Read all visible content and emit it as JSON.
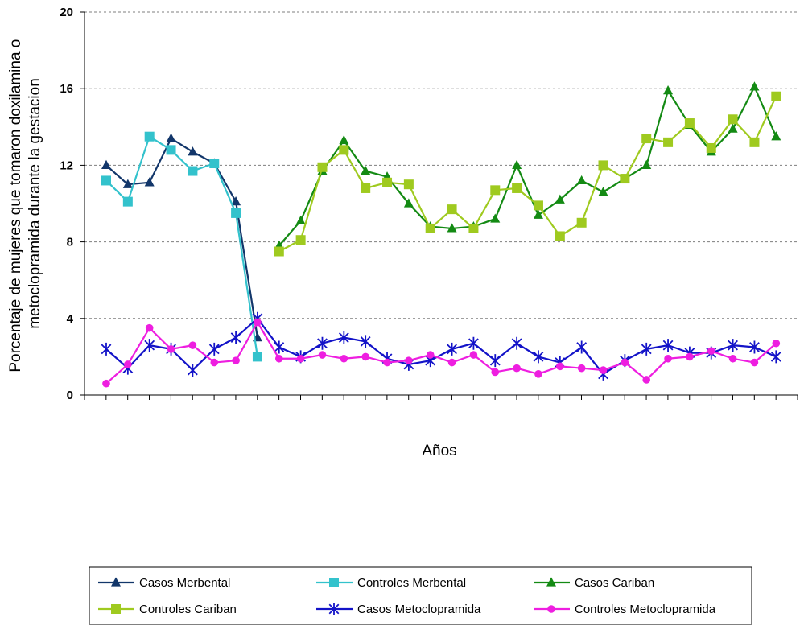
{
  "chart_data": {
    "type": "line",
    "title": "",
    "xlabel": "Años",
    "ylabel": [
      "Porcentaje de mujeres que tomaron doxilamina o",
      "metoclopramida durante la gestacion"
    ],
    "ylim": [
      0,
      20
    ],
    "yticks": [
      "0",
      "4",
      "8",
      "12",
      "16",
      "20"
    ],
    "grid": "horizontal dashed",
    "legend_position": "bottom",
    "x": [
      1,
      2,
      3,
      4,
      5,
      6,
      7,
      8,
      9,
      10,
      11,
      12,
      13,
      14,
      15,
      16,
      17,
      18,
      19,
      20,
      21,
      22,
      23,
      24,
      25,
      26,
      27,
      28,
      29,
      30,
      31,
      32,
      33
    ],
    "series": [
      {
        "name": "Casos Merbental",
        "color": "#12366a",
        "marker": "triangle",
        "values": [
          12.0,
          11.0,
          11.1,
          13.4,
          12.7,
          12.1,
          10.1,
          3.0,
          null,
          null,
          null,
          null,
          null,
          null,
          null,
          null,
          null,
          null,
          null,
          null,
          null,
          null,
          null,
          null,
          null,
          null,
          null,
          null,
          null,
          null,
          null,
          null,
          null
        ]
      },
      {
        "name": "Controles Merbental",
        "color": "#33c2cc",
        "marker": "square",
        "values": [
          11.2,
          10.1,
          13.5,
          12.8,
          11.7,
          12.1,
          9.5,
          2.0,
          null,
          null,
          null,
          null,
          null,
          null,
          null,
          null,
          null,
          null,
          null,
          null,
          null,
          null,
          null,
          null,
          null,
          null,
          null,
          null,
          null,
          null,
          null,
          null,
          null
        ]
      },
      {
        "name": "Casos Cariban",
        "color": "#138a13",
        "marker": "triangle",
        "values": [
          null,
          null,
          null,
          null,
          null,
          null,
          null,
          null,
          7.8,
          9.1,
          11.7,
          13.3,
          11.7,
          11.4,
          10.0,
          8.8,
          8.7,
          8.8,
          9.2,
          12.0,
          9.4,
          10.2,
          11.2,
          10.6,
          11.3,
          12.0,
          15.9,
          14.1,
          12.7,
          13.9,
          16.1,
          13.5,
          null
        ]
      },
      {
        "name": "Controles Cariban",
        "color": "#9fca1f",
        "marker": "square",
        "values": [
          null,
          null,
          null,
          null,
          null,
          null,
          null,
          null,
          7.5,
          8.1,
          11.9,
          12.8,
          10.8,
          11.1,
          11.0,
          8.7,
          9.7,
          8.7,
          10.7,
          10.8,
          9.9,
          8.3,
          9.0,
          12.0,
          11.3,
          13.4,
          13.2,
          14.2,
          12.9,
          14.4,
          13.2,
          15.6,
          null
        ]
      },
      {
        "name": "Casos Metoclopramida",
        "color": "#1313c8",
        "marker": "star",
        "values": [
          2.4,
          1.4,
          2.6,
          2.4,
          1.3,
          2.4,
          3.0,
          4.0,
          2.5,
          2.0,
          2.7,
          3.0,
          2.8,
          1.9,
          1.6,
          1.8,
          2.4,
          2.7,
          1.8,
          2.7,
          2.0,
          1.7,
          2.5,
          1.1,
          1.8,
          2.4,
          2.6,
          2.2,
          2.2,
          2.6,
          2.5,
          2.0,
          null
        ]
      },
      {
        "name": "Controles Metoclopramida",
        "color": "#ee1ee0",
        "marker": "circle",
        "values": [
          0.6,
          1.6,
          3.5,
          2.4,
          2.6,
          1.7,
          1.8,
          3.8,
          1.9,
          1.9,
          2.1,
          1.9,
          2.0,
          1.7,
          1.8,
          2.1,
          1.7,
          2.1,
          1.2,
          1.4,
          1.1,
          1.5,
          1.4,
          1.3,
          1.7,
          0.8,
          1.9,
          2.0,
          2.3,
          1.9,
          1.7,
          2.7,
          null
        ]
      }
    ]
  }
}
